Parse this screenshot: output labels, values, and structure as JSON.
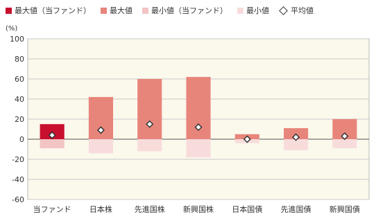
{
  "chart_data": {
    "type": "bar",
    "ylabel": "(%)",
    "ylim": [
      -60,
      100
    ],
    "yticks": [
      100,
      80,
      60,
      40,
      20,
      0,
      -20,
      -40,
      -60
    ],
    "categories": [
      "当ファンド",
      "日本株",
      "先進国株",
      "新興国株",
      "日本国債",
      "先進国債",
      "新興国債"
    ],
    "series": [
      {
        "name": "最大値（当ファンド）",
        "values": [
          15,
          null,
          null,
          null,
          null,
          null,
          null
        ],
        "color": "#c8102e"
      },
      {
        "name": "最大値",
        "values": [
          null,
          42,
          60,
          62,
          5,
          11,
          20
        ],
        "color": "#e8857b"
      },
      {
        "name": "最小値（当ファンド）",
        "values": [
          -9,
          null,
          null,
          null,
          null,
          null,
          null
        ],
        "color": "#f2c4c4"
      },
      {
        "name": "最小値",
        "values": [
          null,
          -14,
          -12,
          -18,
          -4,
          -11,
          -9
        ],
        "color": "#f8dcdc"
      },
      {
        "name": "平均値",
        "values": [
          4,
          9,
          15,
          12,
          0,
          2,
          3
        ],
        "color": "#333333",
        "marker": "diamond"
      }
    ],
    "grid": true,
    "legend_position": "top"
  }
}
